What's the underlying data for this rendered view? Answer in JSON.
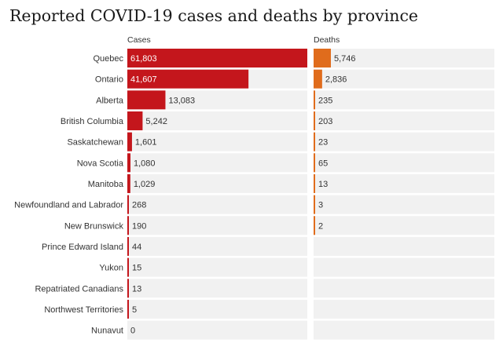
{
  "chart_data": {
    "type": "bar",
    "title": "Reported COVID-19 cases and deaths by province",
    "categories": [
      "Quebec",
      "Ontario",
      "Alberta",
      "British Columbia",
      "Saskatchewan",
      "Nova Scotia",
      "Manitoba",
      "Newfoundland and Labrador",
      "New Brunswick",
      "Prince Edward Island",
      "Yukon",
      "Repatriated Canadians",
      "Northwest Territories",
      "Nunavut"
    ],
    "series": [
      {
        "name": "Cases",
        "values": [
          61803,
          41607,
          13083,
          5242,
          1601,
          1080,
          1029,
          268,
          190,
          44,
          15,
          13,
          5,
          0
        ],
        "labels": [
          "61,803",
          "41,607",
          "13,083",
          "5,242",
          "1,601",
          "1,080",
          "1,029",
          "268",
          "190",
          "44",
          "15",
          "13",
          "5",
          "0"
        ],
        "color": "#c4161c"
      },
      {
        "name": "Deaths",
        "values": [
          5746,
          2836,
          235,
          203,
          23,
          65,
          13,
          3,
          2,
          0,
          0,
          0,
          0,
          0
        ],
        "labels": [
          "5,746",
          "2,836",
          "235",
          "203",
          "23",
          "65",
          "13",
          "3",
          "2",
          "",
          "",
          "",
          "",
          ""
        ],
        "color": "#e06c1c"
      }
    ],
    "xlim": [
      0,
      61803
    ],
    "grid": false,
    "legend": "none"
  },
  "colors": {
    "track": "#f1f1f1",
    "cases": "#c4161c",
    "deaths": "#e06c1c",
    "text": "#333333"
  }
}
